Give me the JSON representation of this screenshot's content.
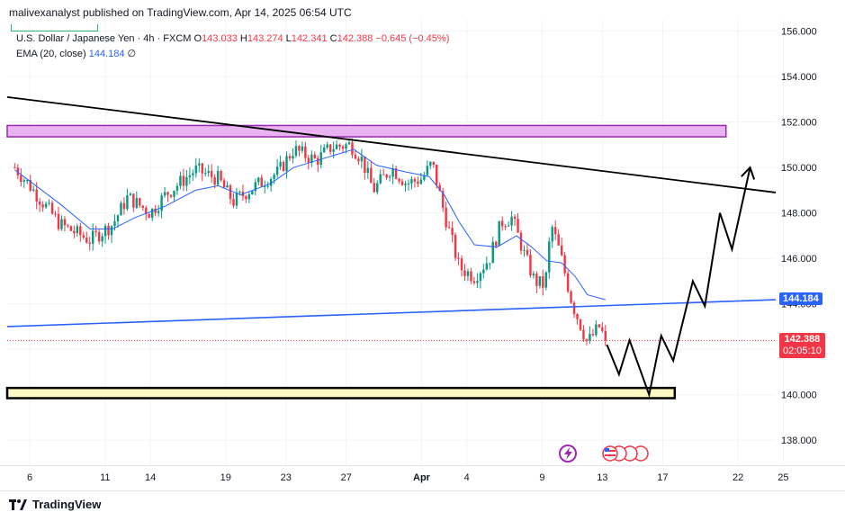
{
  "header": {
    "published": "malivexanalyst published on TradingView.com, Apr 14, 2025 06:54 UTC"
  },
  "legend": {
    "symbol": "U.S. Dollar / Japanese Yen · 4h · FXCM",
    "open_label": "O",
    "open": "143.033",
    "high_label": "H",
    "high": "143.274",
    "low_label": "L",
    "low": "142.341",
    "close_label": "C",
    "close": "142.388",
    "change": "−0.645 (−0.45%)",
    "ema_label": "EMA (20, close)",
    "ema_value": "144.184",
    "ema_extra": "∅"
  },
  "price_tags": {
    "ema": "144.184",
    "last": "142.388",
    "countdown": "02:05:10"
  },
  "footer": {
    "brand": "TradingView"
  },
  "colors": {
    "up": "#089981",
    "down": "#f23645",
    "ema": "#2962ff",
    "zone_top_fill": "#e8b3f0",
    "zone_top_border": "#9c27b0",
    "zone_bottom_fill": "#fff9c4",
    "trend": "#000000"
  },
  "chart_data": {
    "type": "candlestick",
    "y_axis": {
      "range": [
        136.9,
        156.5
      ],
      "ticks": [
        "156.000",
        "154.000",
        "152.000",
        "150.000",
        "148.000",
        "146.000",
        "144.000",
        "142.000",
        "140.000",
        "138.000"
      ],
      "tick_values": [
        156,
        154,
        152,
        150,
        148,
        146,
        144,
        142,
        140,
        138
      ]
    },
    "x_axis": {
      "range": [
        4.5,
        55.5
      ],
      "ticks": [
        {
          "label": "6",
          "day": 6
        },
        {
          "label": "11",
          "day": 11
        },
        {
          "label": "14",
          "day": 14
        },
        {
          "label": "19",
          "day": 19
        },
        {
          "label": "23",
          "day": 23
        },
        {
          "label": "27",
          "day": 27
        },
        {
          "label": "Apr",
          "day": 32
        },
        {
          "label": "4",
          "day": 35
        },
        {
          "label": "9",
          "day": 40
        },
        {
          "label": "13",
          "day": 44
        },
        {
          "label": "17",
          "day": 48
        },
        {
          "label": "22",
          "day": 53
        },
        {
          "label": "25",
          "day": 56
        }
      ]
    },
    "anchors": [
      [
        5.0,
        150.0
      ],
      [
        6.0,
        149.2
      ],
      [
        8.0,
        147.5
      ],
      [
        10.0,
        146.8
      ],
      [
        11.5,
        147.5
      ],
      [
        12.5,
        148.7
      ],
      [
        14.0,
        148.0
      ],
      [
        15.0,
        148.8
      ],
      [
        17.0,
        149.9
      ],
      [
        18.5,
        149.5
      ],
      [
        19.5,
        148.5
      ],
      [
        21.0,
        149.2
      ],
      [
        22.5,
        149.8
      ],
      [
        23.5,
        150.8
      ],
      [
        25.0,
        150.3
      ],
      [
        26.0,
        150.9
      ],
      [
        27.3,
        151.0
      ],
      [
        28.0,
        150.4
      ],
      [
        28.8,
        149.0
      ],
      [
        30.0,
        150.0
      ],
      [
        31.0,
        149.3
      ],
      [
        32.0,
        149.5
      ],
      [
        32.7,
        150.2
      ],
      [
        33.5,
        148.0
      ],
      [
        34.5,
        145.6
      ],
      [
        35.5,
        145.2
      ],
      [
        36.5,
        146.0
      ],
      [
        37.3,
        147.6
      ],
      [
        38.0,
        147.8
      ],
      [
        38.8,
        146.2
      ],
      [
        39.5,
        145.0
      ],
      [
        40.2,
        144.8
      ],
      [
        40.6,
        147.5
      ],
      [
        41.2,
        146.2
      ],
      [
        42.0,
        144.0
      ],
      [
        43.0,
        142.3
      ],
      [
        43.8,
        143.0
      ],
      [
        44.2,
        142.388
      ]
    ],
    "candle_span": [
      5.0,
      44.2
    ],
    "candle_count": 190,
    "ema_anchors": [
      [
        5.0,
        149.9
      ],
      [
        8.0,
        148.4
      ],
      [
        10.0,
        147.3
      ],
      [
        11.5,
        147.3
      ],
      [
        13.0,
        147.8
      ],
      [
        15.0,
        148.3
      ],
      [
        17.0,
        149.0
      ],
      [
        18.5,
        149.2
      ],
      [
        20.0,
        148.8
      ],
      [
        22.0,
        149.3
      ],
      [
        23.5,
        150.0
      ],
      [
        25.5,
        150.4
      ],
      [
        27.5,
        150.8
      ],
      [
        29.0,
        150.1
      ],
      [
        31.0,
        149.8
      ],
      [
        32.5,
        149.6
      ],
      [
        33.5,
        148.8
      ],
      [
        34.5,
        147.6
      ],
      [
        35.5,
        146.6
      ],
      [
        37.0,
        146.5
      ],
      [
        38.3,
        147.0
      ],
      [
        39.3,
        146.5
      ],
      [
        40.3,
        145.9
      ],
      [
        41.3,
        145.8
      ],
      [
        42.2,
        145.2
      ],
      [
        43.0,
        144.4
      ],
      [
        44.2,
        144.184
      ]
    ],
    "annotations": {
      "resistance_zone": {
        "y1": 151.85,
        "y2": 151.35,
        "x1": 4.5,
        "x2": 52.2
      },
      "support_zone": {
        "y1": 140.3,
        "y2": 139.85,
        "x1": 4.5,
        "x2": 48.8
      },
      "descending_trendline": [
        [
          4.5,
          153.1
        ],
        [
          55.5,
          148.9
        ]
      ],
      "ascending_trendline": [
        [
          4.5,
          143.0
        ],
        [
          55.5,
          144.184
        ]
      ],
      "projected_path": [
        [
          44.3,
          142.2
        ],
        [
          45.1,
          140.9
        ],
        [
          45.8,
          142.4
        ],
        [
          47.1,
          140.0
        ],
        [
          47.9,
          142.6
        ],
        [
          48.7,
          141.5
        ],
        [
          50.0,
          145.0
        ],
        [
          50.8,
          143.9
        ],
        [
          51.8,
          148.0
        ],
        [
          52.6,
          146.4
        ],
        [
          53.8,
          150.0
        ]
      ],
      "last_price_line": 142.388
    }
  }
}
